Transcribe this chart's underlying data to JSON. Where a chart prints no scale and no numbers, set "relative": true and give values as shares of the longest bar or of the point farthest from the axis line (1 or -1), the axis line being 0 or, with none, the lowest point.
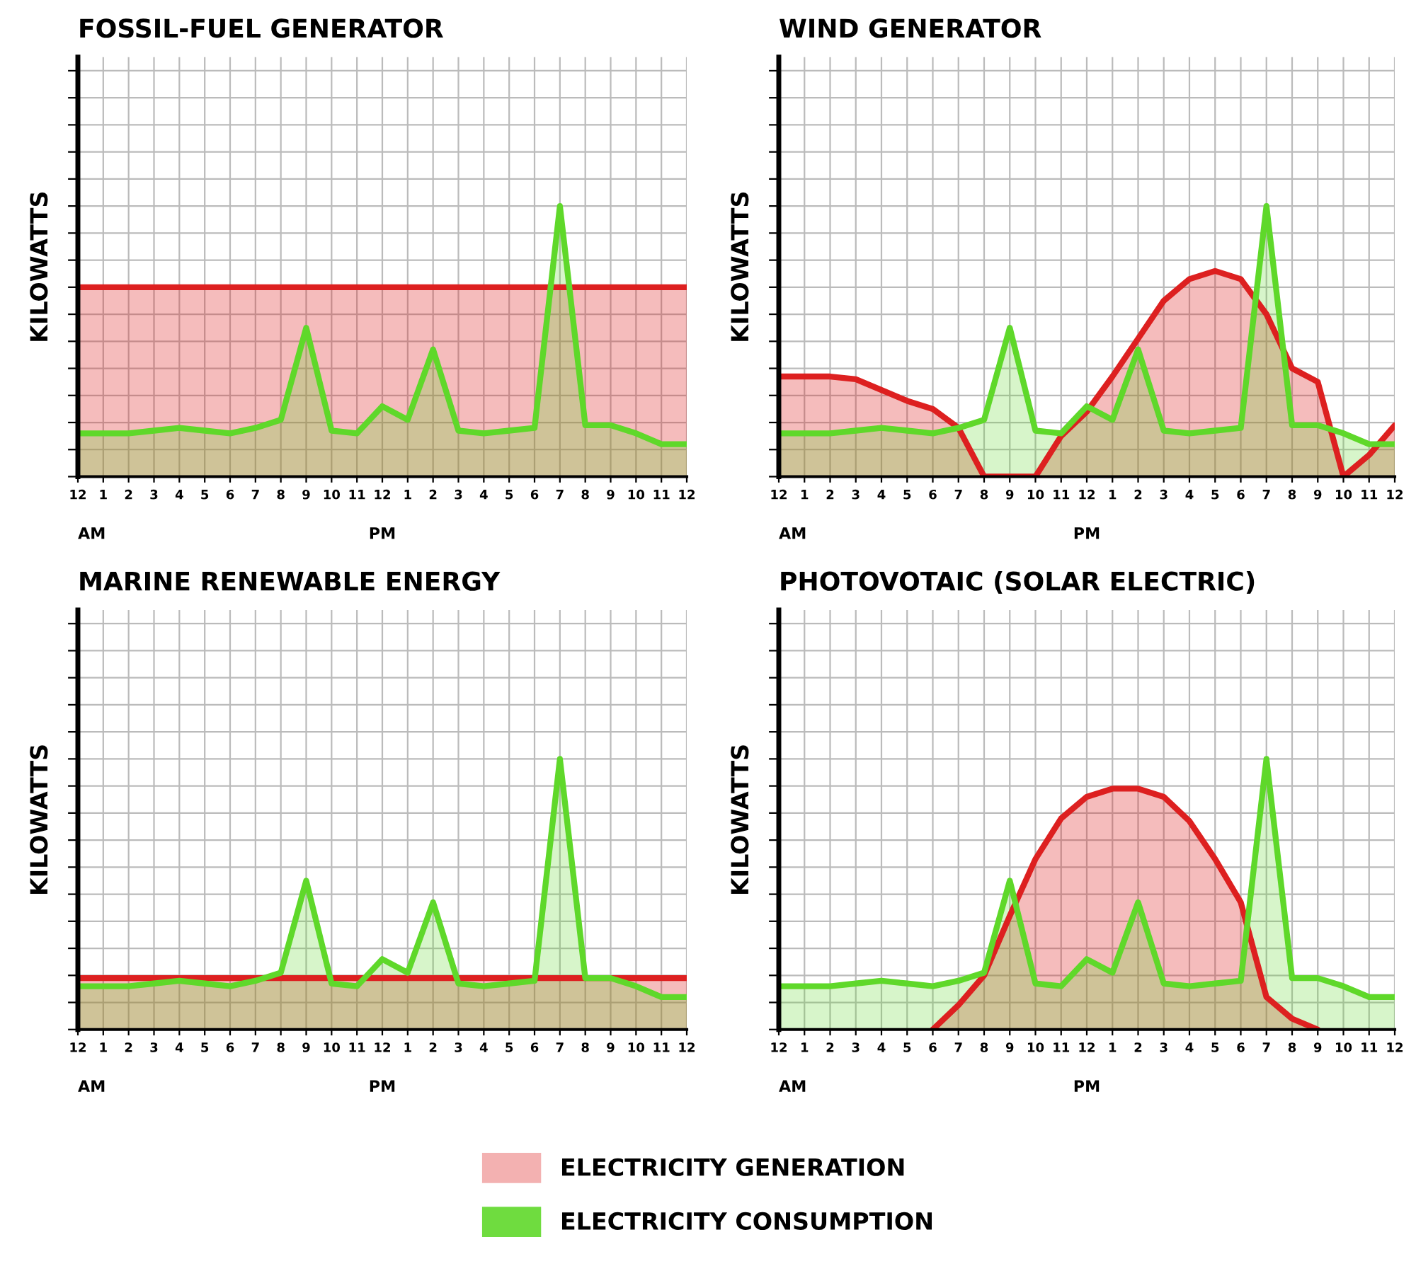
{
  "chart_data": [
    {
      "type": "area",
      "title": "FOSSIL-FUEL GENERATOR",
      "ylabel": "KILOWATTS",
      "relative": true,
      "grid": true,
      "legend": "bottom",
      "tick_labels": "x",
      "categories": [
        "12",
        "1",
        "2",
        "3",
        "4",
        "5",
        "6",
        "7",
        "8",
        "9",
        "10",
        "11",
        "12",
        "1",
        "2",
        "3",
        "4",
        "5",
        "6",
        "7",
        "8",
        "9",
        "10",
        "11",
        "12"
      ],
      "annotations": [
        "AM",
        "PM"
      ],
      "series": [
        {
          "name": "ELECTRICITY GENERATION",
          "color": "#dd2020",
          "values": [
            0.7,
            0.7,
            0.7,
            0.7,
            0.7,
            0.7,
            0.7,
            0.7,
            0.7,
            0.7,
            0.7,
            0.7,
            0.7,
            0.7,
            0.7,
            0.7,
            0.7,
            0.7,
            0.7,
            0.7,
            0.7,
            0.7,
            0.7,
            0.7,
            0.7
          ]
        },
        {
          "name": "ELECTRICITY CONSUMPTION",
          "color": "#5fd82a",
          "values": [
            0.16,
            0.16,
            0.16,
            0.17,
            0.18,
            0.17,
            0.16,
            0.18,
            0.21,
            0.55,
            0.17,
            0.16,
            0.26,
            0.21,
            0.47,
            0.17,
            0.16,
            0.17,
            0.18,
            1.0,
            0.19,
            0.19,
            0.16,
            0.12,
            0.12
          ]
        }
      ]
    },
    {
      "type": "area",
      "title": "WIND GENERATOR",
      "ylabel": "KILOWATTS",
      "relative": true,
      "grid": true,
      "tick_labels": "x",
      "categories": [
        "12",
        "1",
        "2",
        "3",
        "4",
        "5",
        "6",
        "7",
        "8",
        "9",
        "10",
        "11",
        "12",
        "1",
        "2",
        "3",
        "4",
        "5",
        "6",
        "7",
        "8",
        "9",
        "10",
        "11",
        "12"
      ],
      "annotations": [
        "AM",
        "PM"
      ],
      "series": [
        {
          "color": "#dd2020",
          "values": [
            0.37,
            0.37,
            0.37,
            0.36,
            0.32,
            0.28,
            0.25,
            0.18,
            0,
            0,
            0,
            0.15,
            0.24,
            0.37,
            0.51,
            0.65,
            0.73,
            0.76,
            0.73,
            0.6,
            0.4,
            0.35,
            0,
            0.08,
            0.19
          ]
        },
        {
          "color": "#5fd82a",
          "values": [
            0.16,
            0.16,
            0.16,
            0.17,
            0.18,
            0.17,
            0.16,
            0.18,
            0.21,
            0.55,
            0.17,
            0.16,
            0.26,
            0.21,
            0.47,
            0.17,
            0.16,
            0.17,
            0.18,
            1.0,
            0.19,
            0.19,
            0.16,
            0.12,
            0.12
          ]
        }
      ]
    },
    {
      "type": "area",
      "title": "MARINE RENEWABLE ENERGY",
      "ylabel": "KILOWATTS",
      "relative": true,
      "grid": true,
      "tick_labels": "x",
      "categories": [
        "12",
        "1",
        "2",
        "3",
        "4",
        "5",
        "6",
        "7",
        "8",
        "9",
        "10",
        "11",
        "12",
        "1",
        "2",
        "3",
        "4",
        "5",
        "6",
        "7",
        "8",
        "9",
        "10",
        "11",
        "12"
      ],
      "annotations": [
        "AM",
        "PM"
      ],
      "series": [
        {
          "color": "#dd2020",
          "values": [
            0.19,
            0.19,
            0.19,
            0.19,
            0.19,
            0.19,
            0.19,
            0.19,
            0.19,
            0.19,
            0.19,
            0.19,
            0.19,
            0.19,
            0.19,
            0.19,
            0.19,
            0.19,
            0.19,
            0.19,
            0.19,
            0.19,
            0.19,
            0.19,
            0.19
          ]
        },
        {
          "color": "#5fd82a",
          "values": [
            0.16,
            0.16,
            0.16,
            0.17,
            0.18,
            0.17,
            0.16,
            0.18,
            0.21,
            0.55,
            0.17,
            0.16,
            0.26,
            0.21,
            0.47,
            0.17,
            0.16,
            0.17,
            0.18,
            1.0,
            0.19,
            0.19,
            0.16,
            0.12,
            0.12
          ]
        }
      ]
    },
    {
      "type": "area",
      "title": "PHOTOVOTAIC (SOLAR ELECTRIC)",
      "ylabel": "KILOWATTS",
      "relative": true,
      "grid": true,
      "tick_labels": "x",
      "categories": [
        "12",
        "1",
        "2",
        "3",
        "4",
        "5",
        "6",
        "7",
        "8",
        "9",
        "10",
        "11",
        "12",
        "1",
        "2",
        "3",
        "4",
        "5",
        "6",
        "7",
        "8",
        "9",
        "10",
        "11",
        "12"
      ],
      "annotations": [
        "AM",
        "PM"
      ],
      "series": [
        {
          "color": "#dd2020",
          "values": [
            null,
            null,
            null,
            null,
            null,
            null,
            0,
            0.09,
            0.2,
            0.42,
            0.63,
            0.78,
            0.86,
            0.89,
            0.89,
            0.86,
            0.77,
            0.63,
            0.47,
            0.12,
            0.04,
            0,
            null,
            null,
            null
          ]
        },
        {
          "color": "#5fd82a",
          "values": [
            0.16,
            0.16,
            0.16,
            0.17,
            0.18,
            0.17,
            0.16,
            0.18,
            0.21,
            0.55,
            0.17,
            0.16,
            0.26,
            0.21,
            0.47,
            0.17,
            0.16,
            0.17,
            0.18,
            1.0,
            0.19,
            0.19,
            0.16,
            0.12,
            0.12
          ]
        }
      ]
    }
  ]
}
